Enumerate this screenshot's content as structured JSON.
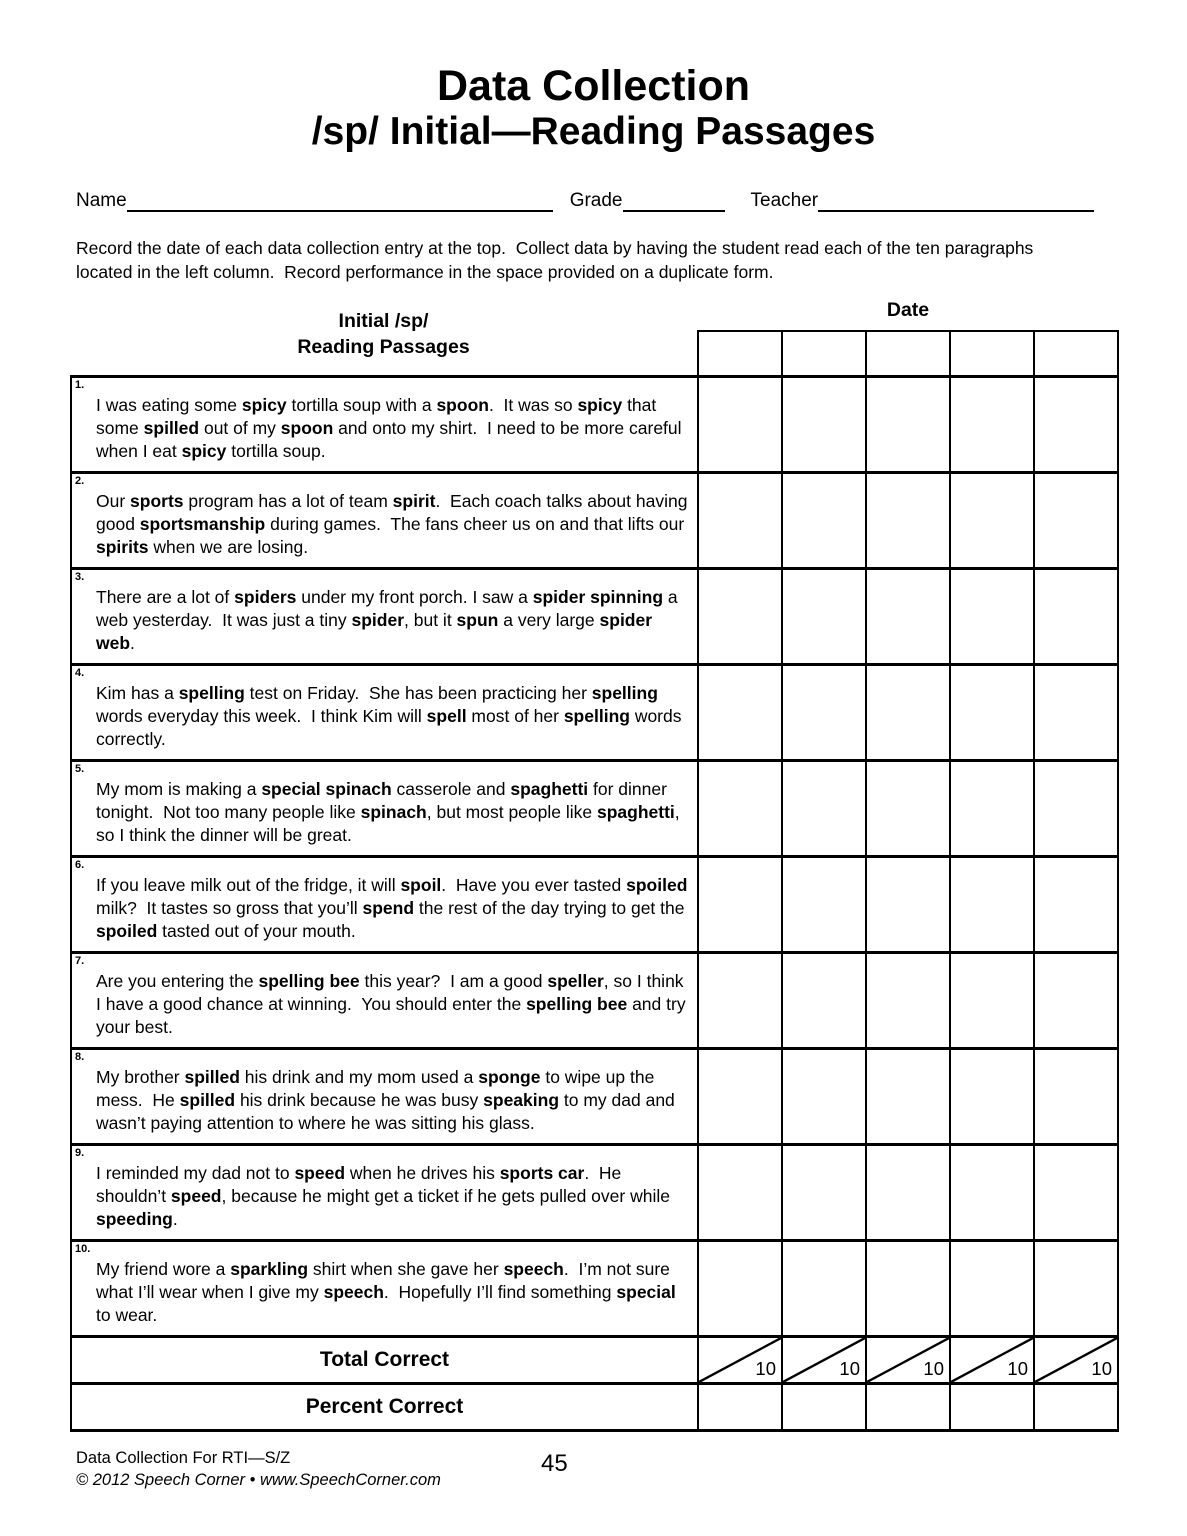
{
  "page": {
    "title": "Data Collection",
    "subtitle": "/sp/ Initial—Reading Passages"
  },
  "fields": {
    "name_label": "Name",
    "grade_label": "Grade",
    "teacher_label": "Teacher"
  },
  "instructions": "Record the date of each data collection entry at the top.  Collect data by having the student read each of the ten paragraphs located in the left column.  Record performance in the space provided on a duplicate form.",
  "table": {
    "left_header_line1": "Initial /sp/",
    "left_header_line2": "Reading Passages",
    "date_header": "Date",
    "date_columns": 5,
    "rows": [
      {
        "number": "1.",
        "segments": [
          {
            "t": "I was eating some ",
            "b": false
          },
          {
            "t": "spicy",
            "b": true
          },
          {
            "t": " tortilla soup with a ",
            "b": false
          },
          {
            "t": "spoon",
            "b": true
          },
          {
            "t": ".  It was so ",
            "b": false
          },
          {
            "t": "spicy",
            "b": true
          },
          {
            "t": " that some ",
            "b": false
          },
          {
            "t": "spilled",
            "b": true
          },
          {
            "t": " out of my ",
            "b": false
          },
          {
            "t": "spoon",
            "b": true
          },
          {
            "t": " and onto my shirt.  I need to be more careful when I eat ",
            "b": false
          },
          {
            "t": "spicy",
            "b": true
          },
          {
            "t": " tortilla soup.",
            "b": false
          }
        ]
      },
      {
        "number": "2.",
        "segments": [
          {
            "t": "Our ",
            "b": false
          },
          {
            "t": "sports",
            "b": true
          },
          {
            "t": " program has a lot of team ",
            "b": false
          },
          {
            "t": "spirit",
            "b": true
          },
          {
            "t": ".  Each coach talks about having good ",
            "b": false
          },
          {
            "t": "sportsmanship",
            "b": true
          },
          {
            "t": " during games.  The fans cheer us on and that lifts our ",
            "b": false
          },
          {
            "t": "spirits",
            "b": true
          },
          {
            "t": " when we are losing.",
            "b": false
          }
        ]
      },
      {
        "number": "3.",
        "segments": [
          {
            "t": "There are a lot of ",
            "b": false
          },
          {
            "t": "spiders",
            "b": true
          },
          {
            "t": " under my front porch. I saw a ",
            "b": false
          },
          {
            "t": "spider spinning",
            "b": true
          },
          {
            "t": " a web yesterday.  It was just a tiny ",
            "b": false
          },
          {
            "t": "spider",
            "b": true
          },
          {
            "t": ", but it ",
            "b": false
          },
          {
            "t": "spun",
            "b": true
          },
          {
            "t": " a very large ",
            "b": false
          },
          {
            "t": "spider web",
            "b": true
          },
          {
            "t": ".",
            "b": false
          }
        ]
      },
      {
        "number": "4.",
        "segments": [
          {
            "t": "Kim has a ",
            "b": false
          },
          {
            "t": "spelling",
            "b": true
          },
          {
            "t": " test on Friday.  She has been practicing her ",
            "b": false
          },
          {
            "t": "spelling",
            "b": true
          },
          {
            "t": " words everyday this week.  I think Kim will ",
            "b": false
          },
          {
            "t": "spell",
            "b": true
          },
          {
            "t": " most of her ",
            "b": false
          },
          {
            "t": "spelling",
            "b": true
          },
          {
            "t": " words correctly.",
            "b": false
          }
        ]
      },
      {
        "number": "5.",
        "segments": [
          {
            "t": "My mom is making a ",
            "b": false
          },
          {
            "t": "special spinach",
            "b": true
          },
          {
            "t": " casserole and ",
            "b": false
          },
          {
            "t": "spaghetti",
            "b": true
          },
          {
            "t": " for dinner tonight.  Not too many people like ",
            "b": false
          },
          {
            "t": "spinach",
            "b": true
          },
          {
            "t": ", but most people like ",
            "b": false
          },
          {
            "t": "spaghetti",
            "b": true
          },
          {
            "t": ", so I think the dinner will be great.",
            "b": false
          }
        ]
      },
      {
        "number": "6.",
        "segments": [
          {
            "t": "If you leave milk out of the fridge, it will ",
            "b": false
          },
          {
            "t": "spoil",
            "b": true
          },
          {
            "t": ".  Have you ever tasted ",
            "b": false
          },
          {
            "t": "spoiled",
            "b": true
          },
          {
            "t": " milk?  It tastes so gross that you’ll ",
            "b": false
          },
          {
            "t": "spend",
            "b": true
          },
          {
            "t": " the rest of the day trying to get the ",
            "b": false
          },
          {
            "t": "spoiled",
            "b": true
          },
          {
            "t": " tasted out of your mouth.",
            "b": false
          }
        ]
      },
      {
        "number": "7.",
        "segments": [
          {
            "t": "Are you entering the ",
            "b": false
          },
          {
            "t": "spelling bee",
            "b": true
          },
          {
            "t": " this year?  I am a good ",
            "b": false
          },
          {
            "t": "speller",
            "b": true
          },
          {
            "t": ", so I think I have a good chance at winning.  You should enter the ",
            "b": false
          },
          {
            "t": "spelling bee",
            "b": true
          },
          {
            "t": " and try your best.",
            "b": false
          }
        ]
      },
      {
        "number": "8.",
        "segments": [
          {
            "t": "My brother ",
            "b": false
          },
          {
            "t": "spilled",
            "b": true
          },
          {
            "t": " his drink and my mom used a ",
            "b": false
          },
          {
            "t": "sponge",
            "b": true
          },
          {
            "t": " to wipe up the mess.  He ",
            "b": false
          },
          {
            "t": "spilled",
            "b": true
          },
          {
            "t": " his drink because he was busy ",
            "b": false
          },
          {
            "t": "speaking",
            "b": true
          },
          {
            "t": " to my dad and wasn’t paying attention to where he was sitting his glass.",
            "b": false
          }
        ]
      },
      {
        "number": "9.",
        "segments": [
          {
            "t": "I reminded my dad not to ",
            "b": false
          },
          {
            "t": "speed",
            "b": true
          },
          {
            "t": " when he drives his ",
            "b": false
          },
          {
            "t": "sports car",
            "b": true
          },
          {
            "t": ".  He shouldn’t ",
            "b": false
          },
          {
            "t": "speed",
            "b": true
          },
          {
            "t": ", because he might get a ticket if he gets pulled over while ",
            "b": false
          },
          {
            "t": "speeding",
            "b": true
          },
          {
            "t": ".",
            "b": false
          }
        ]
      },
      {
        "number": "10.",
        "segments": [
          {
            "t": "My friend wore a ",
            "b": false
          },
          {
            "t": "sparkling",
            "b": true
          },
          {
            "t": " shirt when she gave her ",
            "b": false
          },
          {
            "t": "speech",
            "b": true
          },
          {
            "t": ".  I’m not sure what I’ll wear when I give my ",
            "b": false
          },
          {
            "t": "speech",
            "b": true
          },
          {
            "t": ".  Hopefully I’ll find something ",
            "b": false
          },
          {
            "t": "special",
            "b": true
          },
          {
            "t": " to wear.",
            "b": false
          }
        ]
      }
    ],
    "total_label": "Total Correct",
    "total_denominator": "10",
    "percent_label": "Percent Correct"
  },
  "footer": {
    "line1": "Data Collection For RTI—S/Z",
    "line2": "© 2012 Speech Corner • www.SpeechCorner.com",
    "page_number": "45"
  }
}
